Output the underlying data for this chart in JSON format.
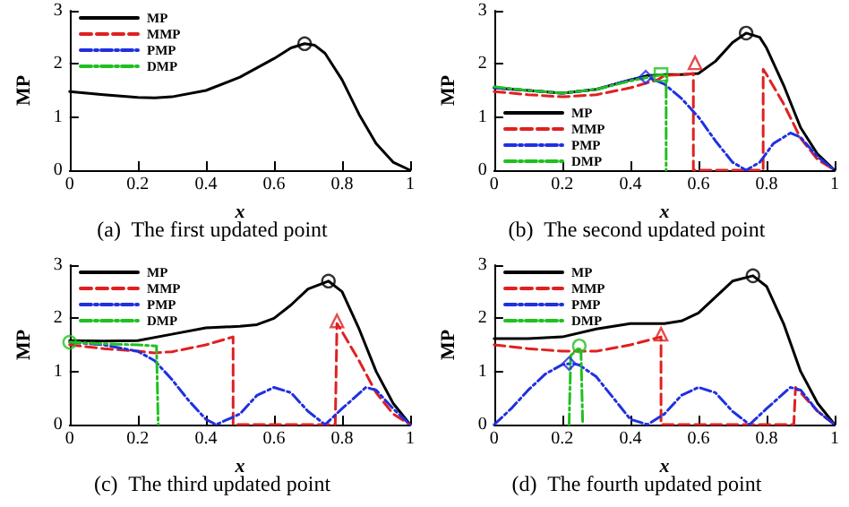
{
  "chart_data": [
    {
      "type": "line",
      "title": "(a)  The first updated point",
      "xlabel": "x",
      "ylabel": "MP",
      "xlim": [
        0,
        1
      ],
      "xticks": [
        0,
        0.2,
        0.4,
        0.6,
        0.8,
        1
      ],
      "ylim": [
        0,
        3
      ],
      "yticks": [
        0,
        1,
        2,
        3
      ],
      "grid": false,
      "legend": "top left",
      "series": [
        {
          "name": "MP",
          "color": "#000000",
          "line_style": "solid",
          "marker": "none",
          "x": [
            0,
            0.1,
            0.2,
            0.25,
            0.3,
            0.4,
            0.5,
            0.6,
            0.65,
            0.69,
            0.72,
            0.75,
            0.8,
            0.85,
            0.9,
            0.95,
            1
          ],
          "values": [
            1.48,
            1.42,
            1.37,
            1.36,
            1.38,
            1.5,
            1.75,
            2.1,
            2.3,
            2.38,
            2.35,
            2.2,
            1.7,
            1.05,
            0.5,
            0.15,
            0
          ]
        },
        {
          "name": "MMP",
          "color": "#e02020",
          "line_style": "dashed",
          "marker": "none"
        },
        {
          "name": "PMP",
          "color": "#2030e0",
          "line_style": "dotted",
          "marker": "none"
        },
        {
          "name": "DMP",
          "color": "#20c020",
          "line_style": "dotted",
          "marker": "none"
        },
        {
          "type": "scatter",
          "color": "#000000",
          "marker": "circle",
          "x": [
            0.69
          ],
          "values": [
            2.38
          ]
        }
      ]
    },
    {
      "type": "line",
      "title": "(b)  The second updated point",
      "xlabel": "x",
      "ylabel": "MP",
      "xlim": [
        0,
        1
      ],
      "xticks": [
        0,
        0.2,
        0.4,
        0.6,
        0.8,
        1
      ],
      "ylim": [
        0,
        3
      ],
      "yticks": [
        0,
        1,
        2,
        3
      ],
      "grid": false,
      "legend": "bottom left",
      "series": [
        {
          "name": "MP",
          "color": "#000000",
          "line_style": "solid",
          "marker": "none",
          "x": [
            0,
            0.1,
            0.2,
            0.3,
            0.4,
            0.45,
            0.5,
            0.55,
            0.6,
            0.65,
            0.7,
            0.74,
            0.78,
            0.8,
            0.85,
            0.9,
            0.95,
            1
          ],
          "values": [
            1.55,
            1.5,
            1.45,
            1.52,
            1.7,
            1.78,
            1.8,
            1.8,
            1.82,
            2.05,
            2.4,
            2.58,
            2.5,
            2.3,
            1.6,
            0.8,
            0.3,
            0
          ]
        },
        {
          "name": "MMP",
          "color": "#e02020",
          "line_style": "dashed",
          "marker": "none",
          "x": [
            0,
            0.1,
            0.2,
            0.3,
            0.4,
            0.48,
            0.5,
            0.55,
            0.585,
            0.585,
            0.79,
            0.79,
            0.8,
            0.85,
            0.9,
            0.95,
            1
          ],
          "values": [
            1.48,
            1.42,
            1.38,
            1.42,
            1.55,
            1.7,
            1.78,
            1.8,
            1.82,
            0,
            0,
            1.9,
            1.8,
            1.25,
            0.6,
            0.2,
            0
          ]
        },
        {
          "name": "PMP",
          "color": "#2030e0",
          "line_style": "dotted",
          "marker": "none",
          "x": [
            0,
            0.1,
            0.2,
            0.3,
            0.4,
            0.45,
            0.5,
            0.55,
            0.6,
            0.65,
            0.7,
            0.74,
            0.78,
            0.82,
            0.87,
            0.9,
            0.95,
            1
          ],
          "values": [
            1.55,
            1.5,
            1.45,
            1.52,
            1.7,
            1.75,
            1.62,
            1.35,
            1,
            0.55,
            0.15,
            0,
            0.15,
            0.5,
            0.7,
            0.62,
            0.25,
            0
          ]
        },
        {
          "name": "DMP",
          "color": "#20c020",
          "line_style": "dotted",
          "marker": "none",
          "x": [
            0,
            0.1,
            0.2,
            0.3,
            0.4,
            0.49,
            0.505,
            0.505
          ],
          "values": [
            1.57,
            1.5,
            1.45,
            1.52,
            1.68,
            1.8,
            1.78,
            0
          ]
        },
        {
          "type": "scatter",
          "color": "#000000",
          "marker": "circle",
          "x": [
            0.74
          ],
          "values": [
            2.58
          ]
        },
        {
          "type": "scatter",
          "color": "#e02020",
          "marker": "triangle",
          "x": [
            0.59
          ],
          "values": [
            2.02
          ]
        },
        {
          "type": "scatter",
          "color": "#2030e0",
          "marker": "diamond",
          "x": [
            0.445
          ],
          "values": [
            1.75
          ]
        },
        {
          "type": "scatter",
          "color": "#20c020",
          "marker": "square",
          "x": [
            0.49
          ],
          "values": [
            1.8
          ]
        }
      ]
    },
    {
      "type": "line",
      "title": "(c)  The third updated point",
      "xlabel": "x",
      "ylabel": "MP",
      "xlim": [
        0,
        1
      ],
      "xticks": [
        0,
        0.2,
        0.4,
        0.6,
        0.8,
        1
      ],
      "ylim": [
        0,
        3
      ],
      "yticks": [
        0,
        1,
        2,
        3
      ],
      "grid": false,
      "legend": "top left",
      "series": [
        {
          "name": "MP",
          "color": "#000000",
          "line_style": "solid",
          "marker": "none",
          "x": [
            0,
            0.1,
            0.2,
            0.3,
            0.4,
            0.5,
            0.55,
            0.6,
            0.65,
            0.7,
            0.76,
            0.8,
            0.85,
            0.9,
            0.95,
            1
          ],
          "values": [
            1.58,
            1.57,
            1.58,
            1.7,
            1.82,
            1.85,
            1.88,
            2,
            2.25,
            2.55,
            2.7,
            2.5,
            1.8,
            1,
            0.4,
            0
          ]
        },
        {
          "name": "MMP",
          "color": "#e02020",
          "line_style": "dashed",
          "marker": "none",
          "x": [
            0,
            0.1,
            0.2,
            0.25,
            0.3,
            0.4,
            0.48,
            0.48,
            0.78,
            0.785,
            0.8,
            0.85,
            0.9,
            0.95,
            1
          ],
          "values": [
            1.5,
            1.43,
            1.38,
            1.35,
            1.37,
            1.5,
            1.65,
            0,
            0,
            1.9,
            1.75,
            1.2,
            0.6,
            0.2,
            0
          ]
        },
        {
          "name": "PMP",
          "color": "#2030e0",
          "line_style": "dotted",
          "marker": "none",
          "x": [
            0,
            0.1,
            0.2,
            0.25,
            0.3,
            0.35,
            0.4,
            0.43,
            0.5,
            0.55,
            0.6,
            0.65,
            0.7,
            0.75,
            0.8,
            0.87,
            0.9,
            0.95,
            1
          ],
          "values": [
            1.55,
            1.5,
            1.38,
            1.2,
            0.85,
            0.45,
            0.1,
            0,
            0.2,
            0.55,
            0.7,
            0.6,
            0.25,
            0,
            0.3,
            0.7,
            0.65,
            0.3,
            0
          ]
        },
        {
          "name": "DMP",
          "color": "#20c020",
          "line_style": "dotted",
          "marker": "none",
          "x": [
            0,
            0.1,
            0.2,
            0.255,
            0.26
          ],
          "values": [
            1.55,
            1.52,
            1.5,
            1.48,
            0
          ]
        },
        {
          "type": "scatter",
          "color": "#000000",
          "marker": "circle",
          "x": [
            0.76
          ],
          "values": [
            2.7
          ]
        },
        {
          "type": "scatter",
          "color": "#e02020",
          "marker": "triangle",
          "x": [
            0.785
          ],
          "values": [
            1.95
          ]
        },
        {
          "type": "scatter",
          "color": "#20c020",
          "marker": "circle",
          "x": [
            0
          ],
          "values": [
            1.55
          ]
        }
      ]
    },
    {
      "type": "line",
      "title": "(d)  The fourth updated point",
      "xlabel": "x",
      "ylabel": "MP",
      "xlim": [
        0,
        1
      ],
      "xticks": [
        0,
        0.2,
        0.4,
        0.6,
        0.8,
        1
      ],
      "ylim": [
        0,
        3
      ],
      "yticks": [
        0,
        1,
        2,
        3
      ],
      "grid": false,
      "legend": "top left",
      "series": [
        {
          "name": "MP",
          "color": "#000000",
          "line_style": "solid",
          "marker": "none",
          "x": [
            0,
            0.1,
            0.2,
            0.3,
            0.4,
            0.5,
            0.55,
            0.6,
            0.65,
            0.7,
            0.76,
            0.8,
            0.85,
            0.9,
            0.95,
            1
          ],
          "values": [
            1.62,
            1.62,
            1.65,
            1.8,
            1.9,
            1.9,
            1.95,
            2.1,
            2.4,
            2.7,
            2.8,
            2.6,
            1.9,
            1,
            0.4,
            0
          ]
        },
        {
          "name": "MMP",
          "color": "#e02020",
          "line_style": "dashed",
          "marker": "none",
          "x": [
            0,
            0.1,
            0.2,
            0.3,
            0.4,
            0.49,
            0.49,
            0.88,
            0.885,
            0.9,
            0.95,
            1
          ],
          "values": [
            1.5,
            1.43,
            1.38,
            1.38,
            1.5,
            1.65,
            0,
            0,
            0.7,
            0.6,
            0.25,
            0
          ]
        },
        {
          "name": "PMP",
          "color": "#2030e0",
          "line_style": "dotted",
          "marker": "none",
          "x": [
            0,
            0.05,
            0.1,
            0.15,
            0.2,
            0.23,
            0.25,
            0.3,
            0.35,
            0.4,
            0.45,
            0.5,
            0.55,
            0.6,
            0.65,
            0.7,
            0.75,
            0.8,
            0.87,
            0.9,
            0.95,
            1
          ],
          "values": [
            0,
            0.3,
            0.65,
            0.95,
            1.13,
            1.15,
            1.12,
            0.9,
            0.5,
            0.1,
            0,
            0.2,
            0.55,
            0.7,
            0.6,
            0.25,
            0,
            0.3,
            0.7,
            0.65,
            0.25,
            0
          ]
        },
        {
          "name": "DMP",
          "color": "#20c020",
          "line_style": "dotted",
          "marker": "none",
          "x": [
            0.22,
            0.225,
            0.25,
            0.255,
            0.26
          ],
          "values": [
            0,
            1.3,
            1.45,
            1.35,
            0
          ]
        },
        {
          "type": "scatter",
          "color": "#000000",
          "marker": "circle",
          "x": [
            0.76
          ],
          "values": [
            2.8
          ]
        },
        {
          "type": "scatter",
          "color": "#e02020",
          "marker": "triangle",
          "x": [
            0.49
          ],
          "values": [
            1.7
          ]
        },
        {
          "type": "scatter",
          "color": "#2030e0",
          "marker": "diamond",
          "x": [
            0.22
          ],
          "values": [
            1.15
          ]
        },
        {
          "type": "scatter",
          "color": "#20c020",
          "marker": "circle",
          "x": [
            0.25
          ],
          "values": [
            1.48
          ]
        }
      ]
    }
  ]
}
